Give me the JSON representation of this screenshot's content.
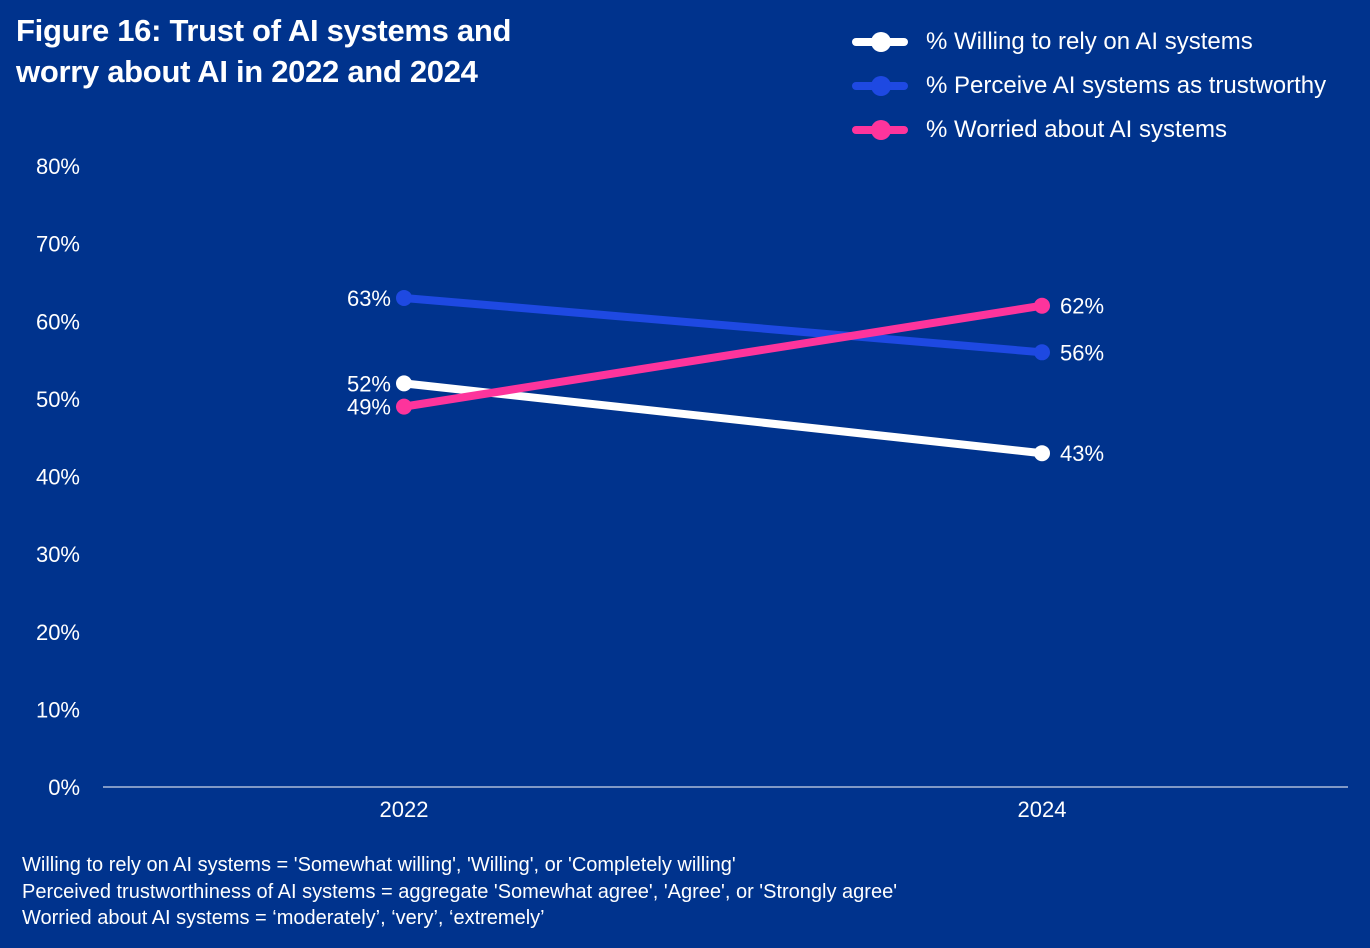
{
  "chart_data": {
    "type": "line",
    "title": "Figure 16: Trust of AI systems and worry about AI in 2022 and 2024",
    "title_lines": [
      "Figure 16: Trust of AI systems and",
      "worry about AI in 2022 and 2024"
    ],
    "x": [
      "2022",
      "2024"
    ],
    "ylim": [
      0,
      80
    ],
    "yticks": [
      "0%",
      "10%",
      "20%",
      "30%",
      "40%",
      "50%",
      "60%",
      "70%",
      "80%"
    ],
    "grid": false,
    "legend_position": "top-right",
    "series": [
      {
        "name": "% Willing to rely on AI systems",
        "values": [
          52,
          43
        ],
        "labels": [
          "52%",
          "43%"
        ],
        "color": "#FFFFFF"
      },
      {
        "name": "% Perceive AI systems as trustworthy",
        "values": [
          63,
          56
        ],
        "labels": [
          "63%",
          "56%"
        ],
        "color": "#1E49E2"
      },
      {
        "name": "% Worried about AI systems",
        "values": [
          49,
          62
        ],
        "labels": [
          "49%",
          "62%"
        ],
        "color": "#FD349C"
      }
    ],
    "notes": [
      "Willing to rely on AI systems = 'Somewhat willing', 'Willing', or 'Completely willing'",
      "Perceived trustworthiness of AI systems = aggregate 'Somewhat agree', 'Agree', or 'Strongly agree'",
      "Worried about AI systems = ‘moderately’, ‘very’, ‘extremely’"
    ]
  }
}
